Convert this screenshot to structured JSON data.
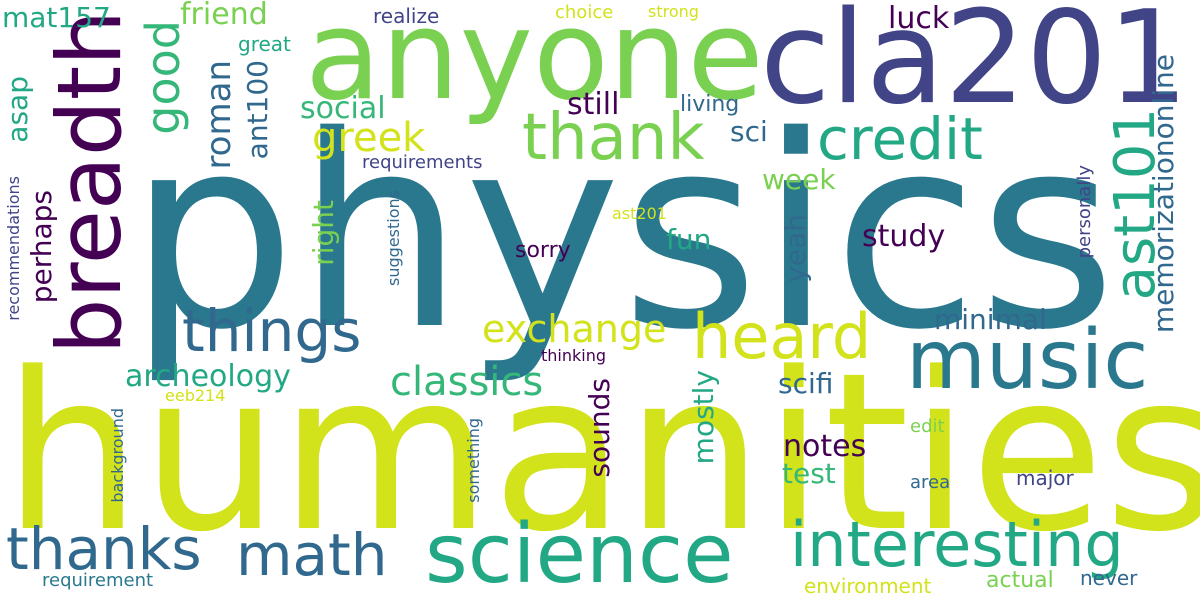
{
  "palette": {
    "yellow": "#d2e21b",
    "lightgreen": "#7ad151",
    "green": "#22a884",
    "teal": "#2a788e",
    "blue": "#414487",
    "purple": "#440154",
    "midgreen": "#35b779",
    "slate": "#31688e"
  },
  "words": [
    {
      "text": "physics"
    },
    {
      "text": "humanities"
    },
    {
      "text": "cla201"
    },
    {
      "text": "anyone"
    },
    {
      "text": "breadth"
    },
    {
      "text": "science"
    },
    {
      "text": "interesting"
    },
    {
      "text": "music"
    },
    {
      "text": "thank"
    },
    {
      "text": "thanks"
    },
    {
      "text": "math"
    },
    {
      "text": "things"
    },
    {
      "text": "credit"
    },
    {
      "text": "heard"
    },
    {
      "text": "ast101"
    },
    {
      "text": "good"
    },
    {
      "text": "exchange"
    },
    {
      "text": "greek"
    },
    {
      "text": "classics"
    },
    {
      "text": "memorizationonline"
    },
    {
      "text": "roman"
    },
    {
      "text": "archeology"
    },
    {
      "text": "minimal"
    },
    {
      "text": "study"
    },
    {
      "text": "notes"
    },
    {
      "text": "social"
    },
    {
      "text": "still"
    },
    {
      "text": "friend"
    },
    {
      "text": "luck"
    },
    {
      "text": "mat157"
    },
    {
      "text": "ant100"
    },
    {
      "text": "sci"
    },
    {
      "text": "week"
    },
    {
      "text": "scifi"
    },
    {
      "text": "test"
    },
    {
      "text": "fun"
    },
    {
      "text": "sounds"
    },
    {
      "text": "mostly"
    },
    {
      "text": "yeah"
    },
    {
      "text": "right"
    },
    {
      "text": "perhaps"
    },
    {
      "text": "asap"
    },
    {
      "text": "sorry"
    },
    {
      "text": "living"
    },
    {
      "text": "great"
    },
    {
      "text": "realize"
    },
    {
      "text": "choice"
    },
    {
      "text": "strong"
    },
    {
      "text": "requirements"
    },
    {
      "text": "recommendations"
    },
    {
      "text": "suggestions"
    },
    {
      "text": "personally"
    },
    {
      "text": "ast201"
    },
    {
      "text": "thinking"
    },
    {
      "text": "eeb214"
    },
    {
      "text": "background"
    },
    {
      "text": "something"
    },
    {
      "text": "edit"
    },
    {
      "text": "area"
    },
    {
      "text": "major"
    },
    {
      "text": "requirement"
    },
    {
      "text": "environment"
    },
    {
      "text": "actual"
    },
    {
      "text": "never"
    }
  ]
}
